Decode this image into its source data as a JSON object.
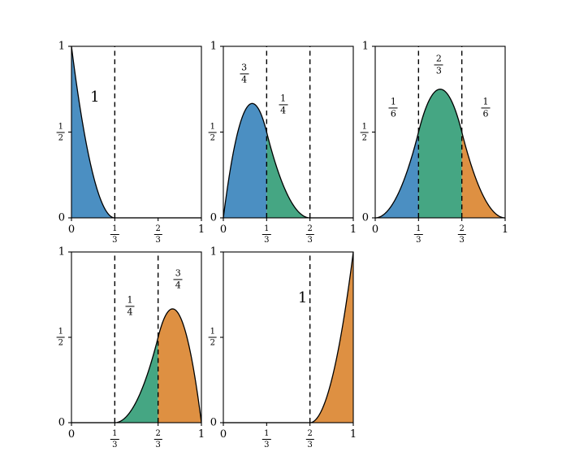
{
  "figure": {
    "background": "#ffffff",
    "colors": {
      "blue": "#4b8fc2",
      "teal": "#45a683",
      "orange": "#de9042",
      "line": "#000000"
    }
  },
  "chart_data": [
    {
      "type": "area",
      "title": "",
      "xlabel": "",
      "ylabel": "",
      "xlim": [
        0,
        1
      ],
      "ylim": [
        0,
        1
      ],
      "grid": false,
      "x_ticks": [
        {
          "value": 0,
          "text": "0"
        },
        {
          "value": 0.333333,
          "num": "1",
          "den": "3"
        },
        {
          "value": 0.666667,
          "num": "2",
          "den": "3"
        },
        {
          "value": 1,
          "text": "1"
        }
      ],
      "y_ticks": [
        {
          "value": 0,
          "text": "0"
        },
        {
          "value": 0.5,
          "num": "1",
          "den": "2"
        },
        {
          "value": 1,
          "text": "1"
        }
      ],
      "curve_segments": [
        {
          "x0": 0,
          "x1": 0.333333,
          "coef": [
            1,
            -6,
            9
          ]
        }
      ],
      "dashed_lines_x": [
        0.333333
      ],
      "regions": [
        {
          "x0": 0,
          "x1": 0.333333,
          "color": "#4b8fc2",
          "label": {
            "text": "1"
          },
          "label_x": 0.18,
          "label_y": 0.7
        }
      ]
    },
    {
      "type": "area",
      "title": "",
      "xlabel": "",
      "ylabel": "",
      "xlim": [
        0,
        1
      ],
      "ylim": [
        0,
        1
      ],
      "grid": false,
      "x_ticks": [
        {
          "value": 0,
          "text": "0"
        },
        {
          "value": 0.333333,
          "num": "1",
          "den": "3"
        },
        {
          "value": 0.666667,
          "num": "2",
          "den": "3"
        },
        {
          "value": 1,
          "text": "1"
        }
      ],
      "y_ticks": [
        {
          "value": 0,
          "text": "0"
        },
        {
          "value": 0.5,
          "num": "1",
          "den": "2"
        },
        {
          "value": 1,
          "text": "1"
        }
      ],
      "curve_segments": [
        {
          "x0": 0,
          "x1": 0.333333,
          "coef": [
            0,
            6,
            -13.5
          ]
        },
        {
          "x0": 0.333333,
          "x1": 0.666667,
          "coef": [
            2,
            -6,
            4.5
          ]
        }
      ],
      "dashed_lines_x": [
        0.333333,
        0.666667
      ],
      "regions": [
        {
          "x0": 0,
          "x1": 0.333333,
          "color": "#4b8fc2",
          "label": {
            "num": "3",
            "den": "4"
          },
          "label_x": 0.16,
          "label_y": 0.84
        },
        {
          "x0": 0.333333,
          "x1": 0.666667,
          "color": "#45a683",
          "label": {
            "num": "1",
            "den": "4"
          },
          "label_x": 0.46,
          "label_y": 0.66
        }
      ]
    },
    {
      "type": "area",
      "title": "",
      "xlabel": "",
      "ylabel": "",
      "xlim": [
        0,
        1
      ],
      "ylim": [
        0,
        1
      ],
      "grid": false,
      "x_ticks": [
        {
          "value": 0,
          "text": "0"
        },
        {
          "value": 0.333333,
          "num": "1",
          "den": "3"
        },
        {
          "value": 0.666667,
          "num": "2",
          "den": "3"
        },
        {
          "value": 1,
          "text": "1"
        }
      ],
      "y_ticks": [
        {
          "value": 0,
          "text": "0"
        },
        {
          "value": 0.5,
          "num": "1",
          "den": "2"
        },
        {
          "value": 1,
          "text": "1"
        }
      ],
      "curve_segments": [
        {
          "x0": 0,
          "x1": 0.333333,
          "coef": [
            0,
            0,
            4.5
          ]
        },
        {
          "x0": 0.333333,
          "x1": 0.666667,
          "coef": [
            -1.5,
            9,
            -9
          ]
        },
        {
          "x0": 0.666667,
          "x1": 1,
          "coef": [
            4.5,
            -9,
            4.5
          ]
        }
      ],
      "dashed_lines_x": [
        0.333333,
        0.666667
      ],
      "regions": [
        {
          "x0": 0,
          "x1": 0.333333,
          "color": "#4b8fc2",
          "label": {
            "num": "1",
            "den": "6"
          },
          "label_x": 0.14,
          "label_y": 0.64
        },
        {
          "x0": 0.333333,
          "x1": 0.666667,
          "color": "#45a683",
          "label": {
            "num": "2",
            "den": "3"
          },
          "label_x": 0.49,
          "label_y": 0.89
        },
        {
          "x0": 0.666667,
          "x1": 1,
          "color": "#de9042",
          "label": {
            "num": "1",
            "den": "6"
          },
          "label_x": 0.85,
          "label_y": 0.64
        }
      ]
    },
    {
      "type": "area",
      "title": "",
      "xlabel": "",
      "ylabel": "",
      "xlim": [
        0,
        1
      ],
      "ylim": [
        0,
        1
      ],
      "grid": false,
      "x_ticks": [
        {
          "value": 0,
          "text": "0"
        },
        {
          "value": 0.333333,
          "num": "1",
          "den": "3"
        },
        {
          "value": 0.666667,
          "num": "2",
          "den": "3"
        },
        {
          "value": 1,
          "text": "1"
        }
      ],
      "y_ticks": [
        {
          "value": 0,
          "text": "0"
        },
        {
          "value": 0.5,
          "num": "1",
          "den": "2"
        },
        {
          "value": 1,
          "text": "1"
        }
      ],
      "curve_segments": [
        {
          "x0": 0.333333,
          "x1": 0.666667,
          "coef": [
            0.5,
            -3,
            4.5
          ]
        },
        {
          "x0": 0.666667,
          "x1": 1,
          "coef": [
            -7.5,
            21,
            -13.5
          ]
        }
      ],
      "dashed_lines_x": [
        0.333333,
        0.666667
      ],
      "regions": [
        {
          "x0": 0.333333,
          "x1": 0.666667,
          "color": "#45a683",
          "label": {
            "num": "1",
            "den": "4"
          },
          "label_x": 0.45,
          "label_y": 0.68
        },
        {
          "x0": 0.666667,
          "x1": 1,
          "color": "#de9042",
          "label": {
            "num": "3",
            "den": "4"
          },
          "label_x": 0.82,
          "label_y": 0.84
        }
      ]
    },
    {
      "type": "area",
      "title": "",
      "xlabel": "",
      "ylabel": "",
      "xlim": [
        0,
        1
      ],
      "ylim": [
        0,
        1
      ],
      "grid": false,
      "x_ticks": [
        {
          "value": 0,
          "text": "0"
        },
        {
          "value": 0.333333,
          "num": "1",
          "den": "3"
        },
        {
          "value": 0.666667,
          "num": "2",
          "den": "3"
        },
        {
          "value": 1,
          "text": "1"
        }
      ],
      "y_ticks": [
        {
          "value": 0,
          "text": "0"
        },
        {
          "value": 0.5,
          "num": "1",
          "den": "2"
        },
        {
          "value": 1,
          "text": "1"
        }
      ],
      "curve_segments": [
        {
          "x0": 0.666667,
          "x1": 1,
          "coef": [
            4,
            -12,
            9
          ]
        }
      ],
      "dashed_lines_x": [
        0.666667
      ],
      "regions": [
        {
          "x0": 0.666667,
          "x1": 1,
          "color": "#de9042",
          "label": {
            "text": "1"
          },
          "label_x": 0.61,
          "label_y": 0.73
        }
      ]
    }
  ]
}
